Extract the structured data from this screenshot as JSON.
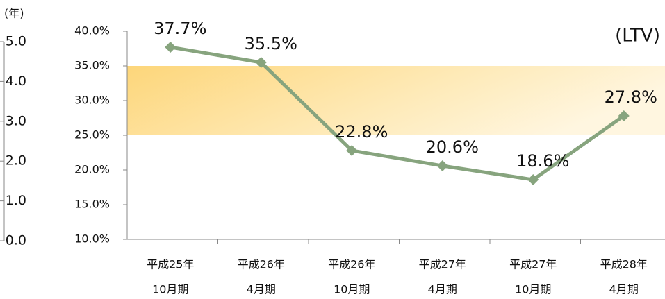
{
  "chart_data": {
    "type": "line",
    "label": "(LTV)",
    "categories": [
      [
        "平成25年",
        "10月期"
      ],
      [
        "平成26年",
        "4月期"
      ],
      [
        "平成26年",
        "10月期"
      ],
      [
        "平成27年",
        "4月期"
      ],
      [
        "平成27年",
        "10月期"
      ],
      [
        "平成28年",
        "4月期"
      ]
    ],
    "series": [
      {
        "color": "#87a47e",
        "values": [
          37.7,
          35.5,
          22.8,
          20.6,
          18.6,
          27.8
        ],
        "value_labels": [
          "37.7%",
          "35.5%",
          "22.8%",
          "20.6%",
          "18.6%",
          "27.8%"
        ]
      }
    ],
    "ylim": [
      10,
      40
    ],
    "yticks": [
      {
        "value": 10,
        "label": "10.0%"
      },
      {
        "value": 15,
        "label": "15.0%"
      },
      {
        "value": 20,
        "label": "20.0%"
      },
      {
        "value": 25,
        "label": "25.0%"
      },
      {
        "value": 30,
        "label": "30.0%"
      },
      {
        "value": 35,
        "label": "35.0%"
      },
      {
        "value": 40,
        "label": "40.0%"
      }
    ],
    "band": [
      25,
      35
    ],
    "y2_label": "(年)",
    "y2lim": [
      0,
      5
    ],
    "y2ticks": [
      {
        "value": 0,
        "label": "0.0"
      },
      {
        "value": 1,
        "label": "1.0"
      },
      {
        "value": 2,
        "label": "2.0"
      },
      {
        "value": 3,
        "label": "3.0"
      },
      {
        "value": 4,
        "label": "4.0"
      },
      {
        "value": 5,
        "label": "5.0"
      }
    ]
  }
}
